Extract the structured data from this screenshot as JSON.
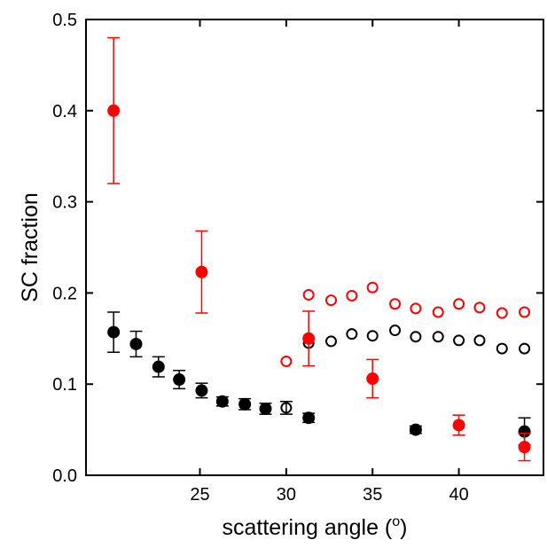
{
  "chart_data": {
    "type": "scatter",
    "x_label": [
      "scattering angle (",
      "o",
      ")"
    ],
    "y_label": "SC fraction",
    "xlim": [
      18.4,
      44.9
    ],
    "xticks": [
      25,
      30,
      35,
      40
    ],
    "ylim": [
      0,
      0.5
    ],
    "yticks": [
      {
        "value": 0,
        "label": "0.0"
      },
      0.1,
      0.2,
      0.3,
      0.4,
      0.5
    ],
    "series": [
      {
        "color": "#000000",
        "marker": "filled",
        "x": [
          20.0,
          21.3,
          22.6,
          23.8,
          25.1,
          26.3,
          27.6,
          28.8,
          31.3,
          37.5,
          43.8
        ],
        "values": [
          0.157,
          0.144,
          0.119,
          0.105,
          0.093,
          0.081,
          0.078,
          0.073,
          0.063,
          0.05,
          0.048
        ],
        "errors": [
          0.022,
          0.014,
          0.011,
          0.01,
          0.008,
          0.005,
          0.006,
          0.006,
          0.005,
          0.004,
          0.015
        ]
      },
      {
        "color": "#000000",
        "marker": "open",
        "x": [
          30.0,
          31.3,
          32.6,
          33.8,
          35.0,
          36.3,
          37.5,
          38.8,
          40.0,
          41.2,
          42.5,
          43.8
        ],
        "values": [
          0.074,
          0.145,
          0.147,
          0.155,
          0.153,
          0.159,
          0.152,
          0.152,
          0.148,
          0.148,
          0.139,
          0.139
        ],
        "errors": [
          0.007,
          null,
          null,
          null,
          null,
          null,
          null,
          null,
          null,
          null,
          null,
          null
        ]
      },
      {
        "color": "#ff0000",
        "marker": "filled",
        "x": [
          20.0,
          25.1,
          31.3,
          35.0,
          40.0,
          43.8
        ],
        "values": [
          0.4,
          0.223,
          0.15,
          0.106,
          0.055,
          0.031
        ],
        "errors": [
          0.08,
          0.045,
          0.03,
          0.021,
          0.011,
          0.015
        ]
      },
      {
        "color": "#ff0000",
        "marker": "open",
        "x": [
          30.0,
          31.3,
          32.6,
          33.8,
          35.0,
          36.3,
          37.5,
          38.8,
          40.0,
          41.2,
          42.5,
          43.8
        ],
        "values": [
          0.125,
          0.198,
          0.192,
          0.197,
          0.206,
          0.188,
          0.183,
          0.179,
          0.188,
          0.184,
          0.178,
          0.179
        ]
      }
    ]
  }
}
